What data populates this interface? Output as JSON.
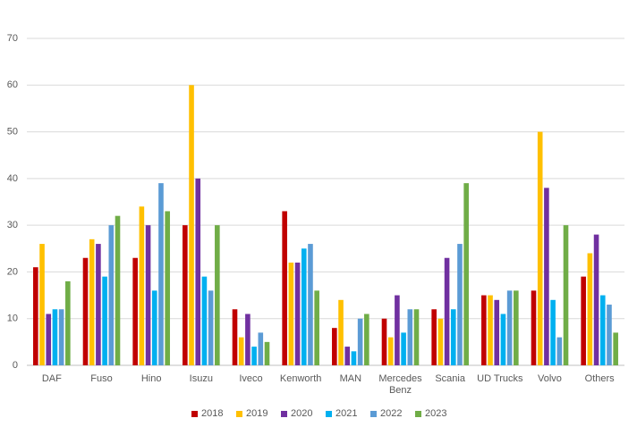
{
  "chart_data": {
    "type": "bar",
    "categories": [
      "DAF",
      "Fuso",
      "Hino",
      "Isuzu",
      "Iveco",
      "Kenworth",
      "MAN",
      "Mercedes Benz",
      "Scania",
      "UD Trucks",
      "Volvo",
      "Others"
    ],
    "series": [
      {
        "name": "2018",
        "color": "#c00000",
        "values": [
          21,
          23,
          23,
          30,
          12,
          33,
          8,
          10,
          12,
          15,
          16,
          19
        ]
      },
      {
        "name": "2019",
        "color": "#ffc000",
        "values": [
          26,
          27,
          34,
          60,
          6,
          22,
          14,
          6,
          10,
          15,
          50,
          24
        ]
      },
      {
        "name": "2020",
        "color": "#7030a0",
        "values": [
          11,
          26,
          30,
          40,
          11,
          22,
          4,
          15,
          23,
          14,
          38,
          28
        ]
      },
      {
        "name": "2021",
        "color": "#00b0f0",
        "values": [
          12,
          19,
          16,
          19,
          4,
          25,
          3,
          7,
          12,
          11,
          14,
          15
        ]
      },
      {
        "name": "2022",
        "color": "#5b9bd5",
        "values": [
          12,
          30,
          39,
          16,
          7,
          26,
          10,
          12,
          26,
          16,
          6,
          13
        ]
      },
      {
        "name": "2023",
        "color": "#70ad47",
        "values": [
          18,
          32,
          33,
          30,
          5,
          16,
          11,
          12,
          39,
          16,
          30,
          7
        ]
      }
    ],
    "ylim": [
      0,
      70
    ],
    "yticks": [
      0,
      10,
      20,
      30,
      40,
      50,
      60,
      70
    ],
    "grid": true,
    "legend": "bottom"
  }
}
